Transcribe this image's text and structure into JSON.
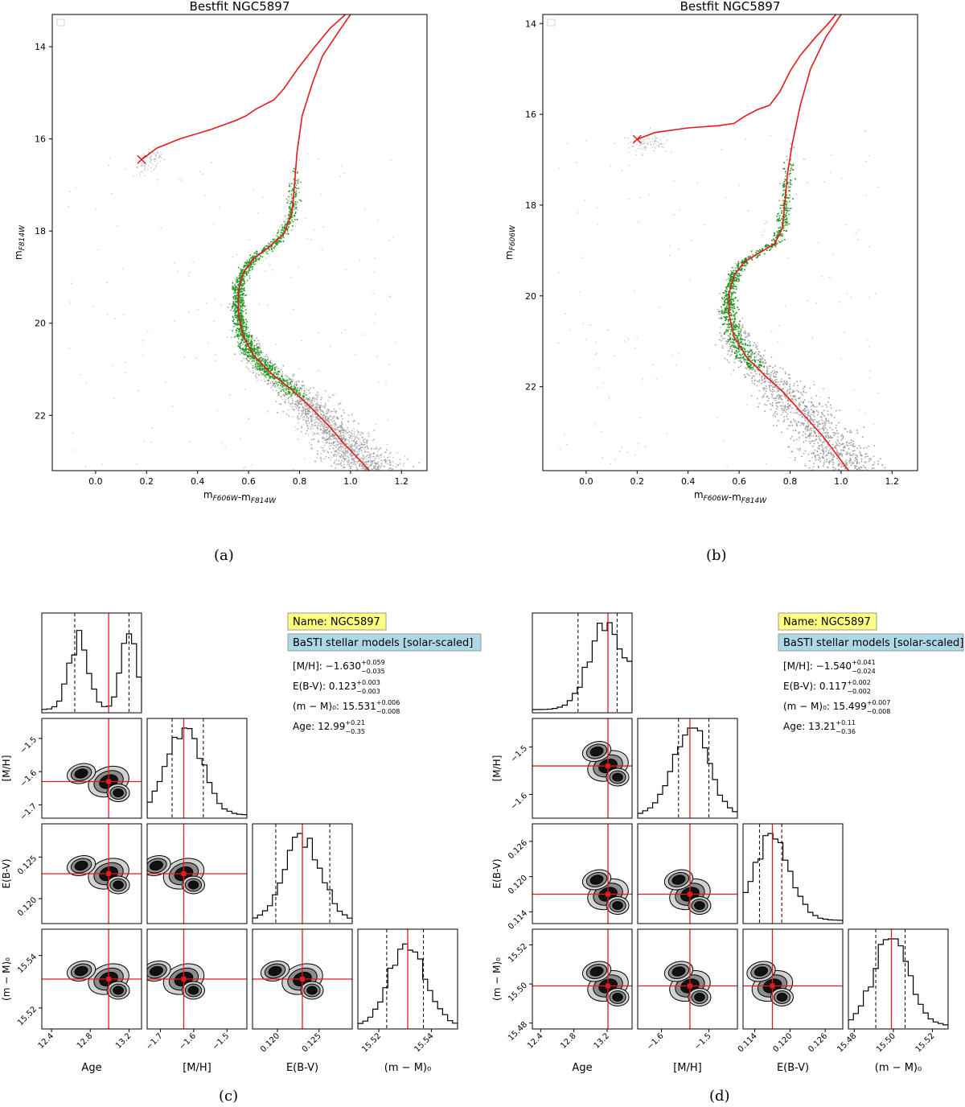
{
  "captions": [
    "(a)",
    "(b)",
    "(c)",
    "(d)"
  ],
  "chart_data": [
    {
      "panel": "a",
      "type": "scatter",
      "title": "Bestfit NGC5897",
      "xlabel": "m_F606W-m_F814W",
      "ylabel": "m_F814W",
      "xlim": [
        -0.17,
        1.3
      ],
      "ylim": [
        23.2,
        13.3
      ],
      "xticks": [
        0.0,
        0.2,
        0.4,
        0.6,
        0.8,
        1.0,
        1.2
      ],
      "yticks": [
        14,
        16,
        18,
        20,
        22
      ],
      "legend": "top-left (empty)",
      "series": [
        {
          "name": "isochrone",
          "color": "#e41a1c",
          "style": "line",
          "points": [
            [
              0.18,
              16.45
            ],
            [
              0.24,
              16.2
            ],
            [
              0.33,
              16.0
            ],
            [
              0.45,
              15.8
            ],
            [
              0.55,
              15.6
            ],
            [
              0.59,
              15.5
            ],
            [
              0.63,
              15.35
            ],
            [
              0.7,
              15.15
            ],
            [
              0.74,
              14.9
            ],
            [
              0.79,
              14.5
            ],
            [
              0.86,
              14.0
            ],
            [
              0.92,
              13.6
            ],
            [
              0.98,
              13.3
            ]
          ]
        },
        {
          "name": "rgb",
          "color": "#e41a1c",
          "style": "line",
          "points": [
            [
              1.0,
              13.3
            ],
            [
              0.95,
              13.7
            ],
            [
              0.89,
              14.2
            ],
            [
              0.85,
              14.8
            ],
            [
              0.81,
              15.5
            ],
            [
              0.79,
              16.3
            ],
            [
              0.78,
              17.0
            ],
            [
              0.77,
              17.6
            ],
            [
              0.74,
              18.05
            ],
            [
              0.68,
              18.35
            ],
            [
              0.62,
              18.6
            ],
            [
              0.58,
              18.9
            ],
            [
              0.56,
              19.3
            ],
            [
              0.56,
              19.8
            ],
            [
              0.58,
              20.3
            ],
            [
              0.62,
              20.7
            ],
            [
              0.69,
              21.1
            ],
            [
              0.76,
              21.4
            ],
            [
              0.83,
              21.75
            ],
            [
              0.91,
              22.2
            ],
            [
              0.98,
              22.65
            ],
            [
              1.05,
              23.05
            ],
            [
              1.09,
              23.3
            ]
          ]
        },
        {
          "name": "turnoff marker",
          "color": "#e41a1c",
          "style": "x",
          "points": [
            [
              0.18,
              16.45
            ]
          ]
        }
      ]
    },
    {
      "panel": "b",
      "type": "scatter",
      "title": "Bestfit NGC5897",
      "xlabel": "m_F606W-m_F814W",
      "ylabel": "m_F606W",
      "xlim": [
        -0.17,
        1.3
      ],
      "ylim": [
        23.85,
        13.8
      ],
      "xticks": [
        0.0,
        0.2,
        0.4,
        0.6,
        0.8,
        1.0,
        1.2
      ],
      "yticks": [
        14,
        16,
        18,
        20,
        22
      ],
      "legend": "top-left (empty)",
      "series": [
        {
          "name": "isochrone",
          "color": "#e41a1c",
          "style": "line",
          "points": [
            [
              0.2,
              16.55
            ],
            [
              0.27,
              16.4
            ],
            [
              0.4,
              16.3
            ],
            [
              0.52,
              16.25
            ],
            [
              0.58,
              16.2
            ],
            [
              0.62,
              16.05
            ],
            [
              0.67,
              15.9
            ],
            [
              0.72,
              15.8
            ],
            [
              0.76,
              15.5
            ],
            [
              0.8,
              15.05
            ],
            [
              0.84,
              14.7
            ],
            [
              0.9,
              14.3
            ],
            [
              0.95,
              14.0
            ],
            [
              0.98,
              13.8
            ]
          ]
        },
        {
          "name": "rgb",
          "color": "#e41a1c",
          "style": "line",
          "points": [
            [
              1.0,
              13.8
            ],
            [
              0.94,
              14.3
            ],
            [
              0.88,
              15.0
            ],
            [
              0.84,
              15.8
            ],
            [
              0.81,
              16.6
            ],
            [
              0.79,
              17.3
            ],
            [
              0.78,
              17.9
            ],
            [
              0.77,
              18.5
            ],
            [
              0.74,
              18.85
            ],
            [
              0.68,
              19.05
            ],
            [
              0.62,
              19.25
            ],
            [
              0.58,
              19.55
            ],
            [
              0.56,
              19.95
            ],
            [
              0.56,
              20.4
            ],
            [
              0.58,
              20.9
            ],
            [
              0.63,
              21.35
            ],
            [
              0.7,
              21.75
            ],
            [
              0.77,
              22.1
            ],
            [
              0.85,
              22.6
            ],
            [
              0.93,
              23.1
            ],
            [
              0.99,
              23.55
            ],
            [
              1.03,
              23.85
            ]
          ]
        },
        {
          "name": "turnoff marker",
          "color": "#e41a1c",
          "style": "x",
          "points": [
            [
              0.2,
              16.55
            ]
          ]
        }
      ]
    },
    {
      "panel": "c",
      "type": "corner",
      "parameters": [
        "Age",
        "[M/H]",
        "E(B-V)",
        "(m − M)₀"
      ],
      "best": [
        12.99,
        -1.63,
        0.123,
        15.531
      ],
      "ranges": [
        [
          12.3,
          13.33
        ],
        [
          -1.74,
          -1.44
        ],
        [
          0.117,
          0.129
        ],
        [
          15.512,
          15.55
        ]
      ],
      "ticks": [
        [
          12.4,
          12.8,
          13.2
        ],
        [
          -1.7,
          -1.6,
          -1.5
        ],
        [
          0.12,
          0.125
        ],
        [
          15.52,
          15.54
        ]
      ],
      "tick_labels": [
        [
          "12.4",
          "12.8",
          "13.2"
        ],
        [
          "−1.7",
          "−1.6",
          "−1.5"
        ],
        [
          "0.120",
          "0.125"
        ],
        [
          "15.52",
          "15.54"
        ]
      ],
      "quantiles": [
        [
          12.64,
          13.2
        ],
        [
          -1.665,
          -1.571
        ],
        [
          0.1198,
          0.1263
        ],
        [
          15.523,
          15.537
        ]
      ],
      "annotations": {
        "name": "Name: NGC5897",
        "models": "BaSTI stellar models [solar-scaled]",
        "lines": [
          {
            "prefix": "[M/H]: ",
            "value": "−1.630",
            "sup": "+0.059",
            "sub": "−0.035"
          },
          {
            "prefix": "E(B-V): ",
            "value": "0.123",
            "sup": "+0.003",
            "sub": "−0.003"
          },
          {
            "prefix": "(m − M)₀: ",
            "value": "15.531",
            "sup": "+0.006",
            "sub": "−0.008"
          },
          {
            "prefix": "Age: ",
            "value": "12.99",
            "sup": "+0.21",
            "sub": "−0.35"
          }
        ]
      }
    },
    {
      "panel": "d",
      "type": "corner",
      "parameters": [
        "Age",
        "[M/H]",
        "E(B-V)",
        "(m − M)₀"
      ],
      "best": [
        13.21,
        -1.54,
        0.117,
        15.499
      ],
      "ranges": [
        [
          12.3,
          13.5
        ],
        [
          -1.65,
          -1.44
        ],
        [
          0.112,
          0.129
        ],
        [
          15.477,
          15.528
        ]
      ],
      "ticks": [
        [
          12.4,
          12.8,
          13.2
        ],
        [
          -1.6,
          -1.5
        ],
        [
          0.114,
          0.12,
          0.126
        ],
        [
          15.48,
          15.5,
          15.52
        ]
      ],
      "tick_labels": [
        [
          "12.4",
          "12.8",
          "13.2"
        ],
        [
          "−1.6",
          "−1.5"
        ],
        [
          "0.114",
          "0.120",
          "0.126"
        ],
        [
          "15.48",
          "15.50",
          "15.52"
        ]
      ],
      "quantiles": [
        [
          12.85,
          13.32
        ],
        [
          -1.564,
          -1.5
        ],
        [
          0.1148,
          0.1186
        ],
        [
          15.491,
          15.506
        ]
      ],
      "annotations": {
        "name": "Name: NGC5897",
        "models": "BaSTI stellar models [solar-scaled]",
        "lines": [
          {
            "prefix": "[M/H]: ",
            "value": "−1.540",
            "sup": "+0.041",
            "sub": "−0.024"
          },
          {
            "prefix": "E(B-V): ",
            "value": "0.117",
            "sup": "+0.002",
            "sub": "−0.002"
          },
          {
            "prefix": "(m − M)₀: ",
            "value": "15.499",
            "sup": "+0.007",
            "sub": "−0.008"
          },
          {
            "prefix": "Age: ",
            "value": "13.21",
            "sup": "+0.11",
            "sub": "−0.36"
          }
        ]
      }
    }
  ]
}
